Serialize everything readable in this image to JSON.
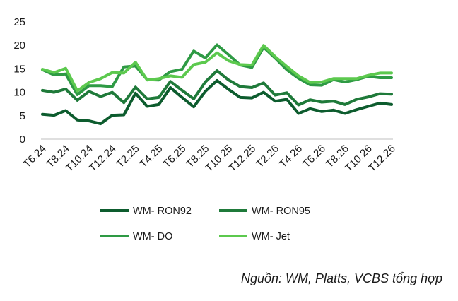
{
  "chart_data": {
    "type": "line",
    "categories": [
      "T6.24",
      "T7.24",
      "T8.24",
      "T9.24",
      "T10.24",
      "T11.24",
      "T12.24",
      "T1.25",
      "T2.25",
      "T3.25",
      "T4.25",
      "T5.25",
      "T6.25",
      "T7.25",
      "T8.25",
      "T9.25",
      "T10.25",
      "T11.25",
      "T12.25",
      "T1.26",
      "T2.26",
      "T3.26",
      "T4.26",
      "T5.26",
      "T6.26",
      "T7.26",
      "T8.26",
      "T9.26",
      "T10.26",
      "T11.26",
      "T12.26"
    ],
    "tick_labels": [
      "T6.24",
      "T8.24",
      "T10.24",
      "T12.24",
      "T2.25",
      "T4.25",
      "T6.25",
      "T8.25",
      "T10.25",
      "T12.25",
      "T2.26",
      "T4.26",
      "T6.26",
      "T8.26",
      "T10.26",
      "T12.26"
    ],
    "ylim": [
      0,
      25
    ],
    "yticks": [
      0,
      5,
      10,
      15,
      20,
      25
    ],
    "grid": false,
    "legend_position": "bottom",
    "series": [
      {
        "name": "WM- RON92",
        "color": "#0d5c2e",
        "values": [
          5.3,
          5.1,
          6.1,
          4.1,
          3.9,
          3.3,
          5.1,
          5.2,
          9.8,
          7.0,
          7.4,
          11.0,
          8.9,
          6.9,
          10.2,
          12.5,
          10.6,
          8.9,
          8.8,
          10.0,
          8.1,
          8.5,
          5.5,
          6.5,
          5.9,
          6.2,
          5.5,
          6.3,
          7.0,
          7.7,
          7.4
        ]
      },
      {
        "name": "WM- RON95",
        "color": "#1f7a3a",
        "values": [
          10.4,
          10.0,
          10.7,
          8.3,
          10.2,
          9.1,
          10.0,
          7.8,
          11.1,
          8.6,
          8.9,
          12.3,
          10.4,
          8.6,
          12.2,
          14.6,
          12.6,
          11.2,
          11.0,
          12.0,
          9.4,
          9.9,
          7.3,
          8.4,
          7.9,
          8.1,
          7.4,
          8.5,
          9.0,
          9.7,
          9.6
        ]
      },
      {
        "name": "WM- DO",
        "color": "#2e9a44",
        "values": [
          14.8,
          13.7,
          13.9,
          9.5,
          11.4,
          11.4,
          11.2,
          15.4,
          15.6,
          12.7,
          12.6,
          14.4,
          14.9,
          18.8,
          17.3,
          20.1,
          18.0,
          15.8,
          15.3,
          19.6,
          17.3,
          14.8,
          13.0,
          11.6,
          11.5,
          12.7,
          12.2,
          12.7,
          13.4,
          13.1,
          13.1
        ]
      },
      {
        "name": "WM- Jet",
        "color": "#5cc94e",
        "values": [
          14.9,
          14.2,
          15.1,
          10.3,
          12.1,
          12.9,
          14.2,
          14.1,
          16.4,
          12.6,
          12.9,
          13.5,
          13.2,
          15.9,
          16.4,
          18.4,
          16.7,
          15.9,
          15.8,
          20.0,
          17.6,
          15.5,
          13.5,
          12.1,
          12.2,
          12.9,
          12.9,
          12.9,
          13.6,
          14.1,
          14.1
        ]
      }
    ]
  },
  "source_text": "Nguồn: WM, Platts, VCBS tổng hợp"
}
